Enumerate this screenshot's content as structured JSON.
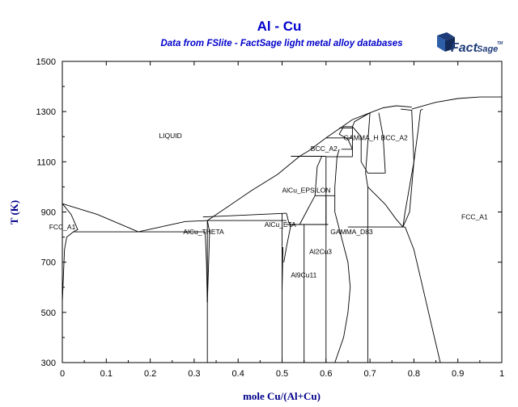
{
  "colors": {
    "title": "#0000cc",
    "axis_title": "#00008b",
    "logo": "#1f3c7a",
    "lines": "#000000",
    "background": "#ffffff"
  },
  "logo": {
    "icon": "factsage-cube-icon",
    "text_main": "Fact",
    "text_suffix": "Sage",
    "trademark": "TM"
  },
  "chart_data": {
    "type": "phase-diagram",
    "title": "Al - Cu",
    "subtitle": "Data from FSlite - FactSage light metal alloy databases",
    "xlabel": "mole Cu/(Al+Cu)",
    "ylabel": "T (K)",
    "xlim": [
      0,
      1
    ],
    "ylim": [
      300,
      1500
    ],
    "xticks": [
      "0",
      "0.1",
      "0.2",
      "0.3",
      "0.4",
      "0.5",
      "0.6",
      "0.7",
      "0.8",
      "0.9",
      "1"
    ],
    "yticks": [
      "300",
      "500",
      "700",
      "900",
      "1100",
      "1300",
      "1500"
    ],
    "grid": false,
    "legend": "none",
    "phase_labels": [
      {
        "text": "LIQUID",
        "x": 0.22,
        "y": 1195
      },
      {
        "text": "FCC_A1",
        "x": -0.03,
        "y": 831
      },
      {
        "text": "AlCu_THETA",
        "x": 0.275,
        "y": 811
      },
      {
        "text": "AlCu_ETA",
        "x": 0.46,
        "y": 841
      },
      {
        "text": "AlCu_EPSILON",
        "x": 0.5,
        "y": 977
      },
      {
        "text": "BCC_A2",
        "x": 0.565,
        "y": 1143
      },
      {
        "text": "GAMMA_H",
        "x": 0.64,
        "y": 1187
      },
      {
        "text": "BCC_A2",
        "x": 0.725,
        "y": 1187
      },
      {
        "text": "GAMMA_D83",
        "x": 0.61,
        "y": 811
      },
      {
        "text": "Al2Cu3",
        "x": 0.562,
        "y": 733
      },
      {
        "text": "Al9Cu11",
        "x": 0.52,
        "y": 640
      },
      {
        "text": "FCC_A1",
        "x": 0.925,
        "y": 871
      }
    ],
    "boundaries": [
      {
        "name": "liquidus-fcc-al",
        "points": [
          [
            0,
            933
          ],
          [
            0.08,
            890
          ],
          [
            0.173,
            821
          ]
        ]
      },
      {
        "name": "liquidus-theta",
        "points": [
          [
            0.173,
            821
          ],
          [
            0.28,
            862
          ],
          [
            0.33,
            866
          ]
        ]
      },
      {
        "name": "liquidus-middle",
        "points": [
          [
            0.33,
            866
          ],
          [
            0.38,
            925
          ],
          [
            0.43,
            985
          ],
          [
            0.49,
            1050
          ],
          [
            0.54,
            1122
          ],
          [
            0.56,
            1143
          ],
          [
            0.6,
            1195
          ],
          [
            0.66,
            1268
          ],
          [
            0.7,
            1295
          ]
        ]
      },
      {
        "name": "liquidus-cu",
        "points": [
          [
            0.7,
            1295
          ],
          [
            0.73,
            1315
          ],
          [
            0.76,
            1323
          ],
          [
            0.795,
            1318
          ]
        ]
      },
      {
        "name": "liquidus-right",
        "points": [
          [
            0.795,
            1310
          ],
          [
            0.85,
            1337
          ],
          [
            0.9,
            1352
          ],
          [
            0.95,
            1358
          ],
          [
            1,
            1358
          ]
        ]
      },
      {
        "name": "fcc-al-solvus",
        "points": [
          [
            0,
            540
          ],
          [
            0.005,
            750
          ],
          [
            0.01,
            800
          ],
          [
            0.025,
            821
          ],
          [
            0.035,
            830
          ],
          [
            0.02,
            890
          ],
          [
            0,
            933
          ]
        ]
      },
      {
        "name": "eutectic-fcc-theta",
        "points": [
          [
            0.025,
            821
          ],
          [
            0.325,
            821
          ]
        ]
      },
      {
        "name": "theta-left",
        "points": [
          [
            0.325,
            821
          ],
          [
            0.328,
            700
          ],
          [
            0.33,
            540
          ]
        ]
      },
      {
        "name": "theta-right",
        "points": [
          [
            0.33,
            540
          ],
          [
            0.333,
            700
          ],
          [
            0.335,
            821
          ],
          [
            0.33,
            866
          ]
        ]
      },
      {
        "name": "theta-vertical",
        "points": [
          [
            0.33,
            866
          ],
          [
            0.33,
            300
          ]
        ]
      },
      {
        "name": "theta-eta-eutectic",
        "points": [
          [
            0.33,
            866
          ],
          [
            0.51,
            866
          ]
        ]
      },
      {
        "name": "eta-top",
        "points": [
          [
            0.32,
            880
          ],
          [
            0.51,
            895
          ]
        ]
      },
      {
        "name": "eta-left",
        "points": [
          [
            0.5,
            895
          ],
          [
            0.5,
            300
          ]
        ]
      },
      {
        "name": "eta-spike",
        "points": [
          [
            0.502,
            760
          ],
          [
            0.5,
            590
          ]
        ]
      },
      {
        "name": "eta-box-right",
        "points": [
          [
            0.51,
            895
          ],
          [
            0.515,
            860
          ],
          [
            0.52,
            848
          ],
          [
            0.51,
            760
          ],
          [
            0.504,
            700
          ]
        ]
      },
      {
        "name": "al2cu3-left",
        "points": [
          [
            0.55,
            850
          ],
          [
            0.55,
            300
          ]
        ]
      },
      {
        "name": "al2cu3-top",
        "points": [
          [
            0.51,
            850
          ],
          [
            0.605,
            850
          ]
        ]
      },
      {
        "name": "epsilon-box-left",
        "points": [
          [
            0.54,
            850
          ],
          [
            0.555,
            900
          ],
          [
            0.575,
            965
          ],
          [
            0.58,
            1080
          ],
          [
            0.59,
            1120
          ]
        ]
      },
      {
        "name": "epsilon-box-right",
        "points": [
          [
            0.6,
            850
          ],
          [
            0.6,
            1120
          ]
        ]
      },
      {
        "name": "epsilon-top",
        "points": [
          [
            0.52,
            1122
          ],
          [
            0.6,
            1122
          ]
        ]
      },
      {
        "name": "epsilon-mid",
        "points": [
          [
            0.575,
            965
          ],
          [
            0.62,
            965
          ]
        ]
      },
      {
        "name": "al9cu11-right",
        "points": [
          [
            0.6,
            965
          ],
          [
            0.6,
            300
          ]
        ]
      },
      {
        "name": "gamma-left",
        "points": [
          [
            0.62,
            300
          ],
          [
            0.64,
            400
          ],
          [
            0.65,
            500
          ],
          [
            0.655,
            600
          ],
          [
            0.65,
            700
          ],
          [
            0.635,
            800
          ],
          [
            0.62,
            900
          ],
          [
            0.62,
            1000
          ],
          [
            0.625,
            1120
          ],
          [
            0.63,
            1150
          ]
        ]
      },
      {
        "name": "gamma-right",
        "points": [
          [
            0.695,
            300
          ],
          [
            0.695,
            1000
          ],
          [
            0.69,
            1055
          ],
          [
            0.7,
            1295
          ]
        ]
      },
      {
        "name": "gamma-mid",
        "points": [
          [
            0.635,
            1150
          ],
          [
            0.66,
            1150
          ],
          [
            0.65,
            1190
          ],
          [
            0.63,
            1210
          ],
          [
            0.64,
            1240
          ],
          [
            0.66,
            1240
          ]
        ]
      },
      {
        "name": "gamma-h-box",
        "points": [
          [
            0.66,
            1150
          ],
          [
            0.66,
            1120
          ],
          [
            0.66,
            1240
          ],
          [
            0.665,
            1260
          ],
          [
            0.7,
            1295
          ]
        ]
      },
      {
        "name": "bcc-a2-left",
        "points": [
          [
            0.66,
            1240
          ],
          [
            0.68,
            1200
          ],
          [
            0.68,
            1100
          ],
          [
            0.695,
            1055
          ],
          [
            0.735,
            1055
          ]
        ]
      },
      {
        "name": "bcc-a2-right",
        "points": [
          [
            0.735,
            1055
          ],
          [
            0.73,
            1200
          ],
          [
            0.72,
            1295
          ]
        ]
      },
      {
        "name": "gamma-d83-bottom",
        "points": [
          [
            0.65,
            840
          ],
          [
            0.78,
            840
          ]
        ]
      },
      {
        "name": "cu-solvus-left",
        "points": [
          [
            0.695,
            1000
          ],
          [
            0.735,
            930
          ],
          [
            0.76,
            870
          ],
          [
            0.775,
            840
          ]
        ]
      },
      {
        "name": "cu-solvus-right",
        "points": [
          [
            0.775,
            840
          ],
          [
            0.79,
            900
          ],
          [
            0.8,
            1100
          ],
          [
            0.81,
            1230
          ],
          [
            0.815,
            1305
          ],
          [
            0.82,
            1310
          ]
        ]
      },
      {
        "name": "cu-fcc-boundary",
        "points": [
          [
            0.78,
            840
          ],
          [
            0.8,
            750
          ],
          [
            0.82,
            600
          ],
          [
            0.84,
            450
          ],
          [
            0.86,
            300
          ]
        ]
      },
      {
        "name": "bcc-cu-top",
        "points": [
          [
            0.77,
            1310
          ],
          [
            0.795,
            1305
          ],
          [
            0.8,
            1100
          ],
          [
            0.78,
            900
          ],
          [
            0.775,
            840
          ]
        ]
      },
      {
        "name": "upper-tie-1",
        "points": [
          [
            0.6,
            1195
          ],
          [
            0.66,
            1195
          ]
        ]
      },
      {
        "name": "upper-tie-2",
        "points": [
          [
            0.6,
            1120
          ],
          [
            0.66,
            1120
          ]
        ]
      },
      {
        "name": "upper-tie-3",
        "points": [
          [
            0.63,
            1235
          ],
          [
            0.66,
            1235
          ]
        ]
      }
    ]
  }
}
